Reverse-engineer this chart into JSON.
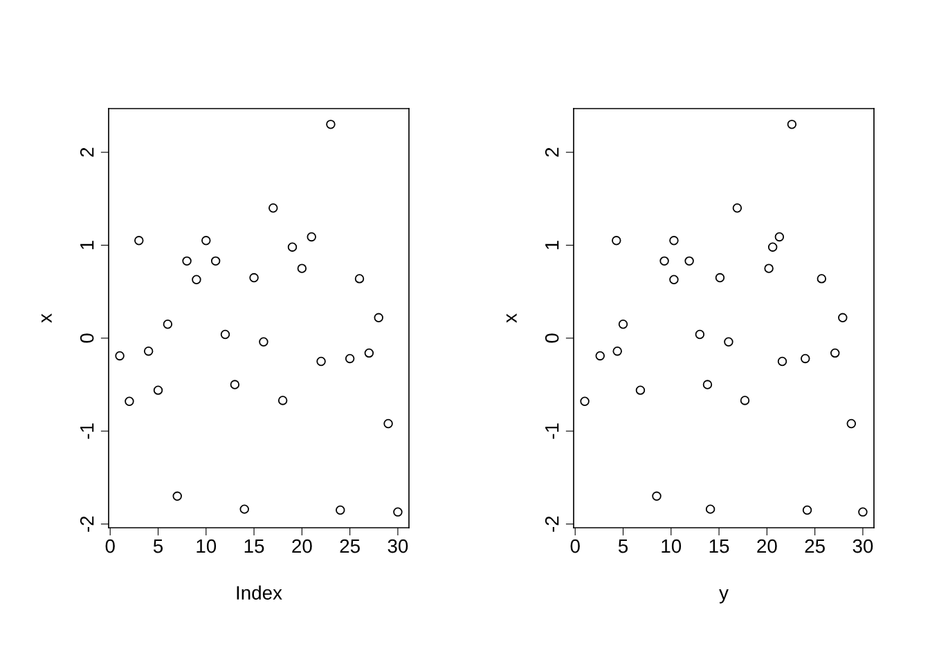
{
  "chart_data": [
    {
      "type": "scatter",
      "xlabel": "Index",
      "ylabel": "x",
      "marker": "circle",
      "grid": false,
      "xlim": [
        -0.16,
        31.16
      ],
      "ylim": [
        -2.04,
        2.47
      ],
      "xticks": [
        0,
        5,
        10,
        15,
        20,
        25,
        30
      ],
      "yticks": [
        -2,
        -1,
        0,
        1,
        2
      ],
      "series": [
        {
          "color": "#000000",
          "x": [
            1,
            2,
            3,
            4,
            5,
            6,
            7,
            8,
            9,
            10,
            11,
            12,
            13,
            14,
            15,
            16,
            17,
            18,
            19,
            20,
            21,
            22,
            23,
            24,
            25,
            26,
            27,
            28,
            29,
            30
          ],
          "values": [
            -0.19,
            -0.68,
            1.05,
            -0.14,
            -0.56,
            0.15,
            -1.7,
            0.83,
            0.63,
            1.05,
            0.83,
            0.04,
            -0.5,
            -1.84,
            0.65,
            -0.04,
            1.4,
            -0.67,
            0.98,
            0.75,
            1.09,
            -0.25,
            2.3,
            -1.85,
            -0.22,
            0.64,
            -0.16,
            0.22,
            -0.92,
            -1.87
          ]
        }
      ]
    },
    {
      "type": "scatter",
      "xlabel": "y",
      "ylabel": "x",
      "marker": "circle",
      "grid": false,
      "xlim": [
        -0.16,
        31.16
      ],
      "ylim": [
        -2.04,
        2.47
      ],
      "xticks": [
        0,
        5,
        10,
        15,
        20,
        25,
        30
      ],
      "yticks": [
        -2,
        -1,
        0,
        1,
        2
      ],
      "series": [
        {
          "color": "#000000",
          "x": [
            1.0,
            2.6,
            4.3,
            4.4,
            5.0,
            6.8,
            8.5,
            9.3,
            10.3,
            10.3,
            11.9,
            13.0,
            13.8,
            14.1,
            15.1,
            16.0,
            16.9,
            17.7,
            20.2,
            20.6,
            21.3,
            21.6,
            22.6,
            24.0,
            24.2,
            25.7,
            27.1,
            27.9,
            28.8,
            30.0
          ],
          "values": [
            -0.68,
            -0.19,
            1.05,
            -0.14,
            0.15,
            -0.56,
            -1.7,
            0.83,
            0.63,
            1.05,
            0.83,
            0.04,
            -0.5,
            -1.84,
            0.65,
            -0.04,
            1.4,
            -0.67,
            0.75,
            0.98,
            1.09,
            -0.25,
            2.3,
            -0.22,
            -1.85,
            0.64,
            -0.16,
            0.22,
            -0.92,
            -1.87
          ]
        }
      ]
    }
  ]
}
